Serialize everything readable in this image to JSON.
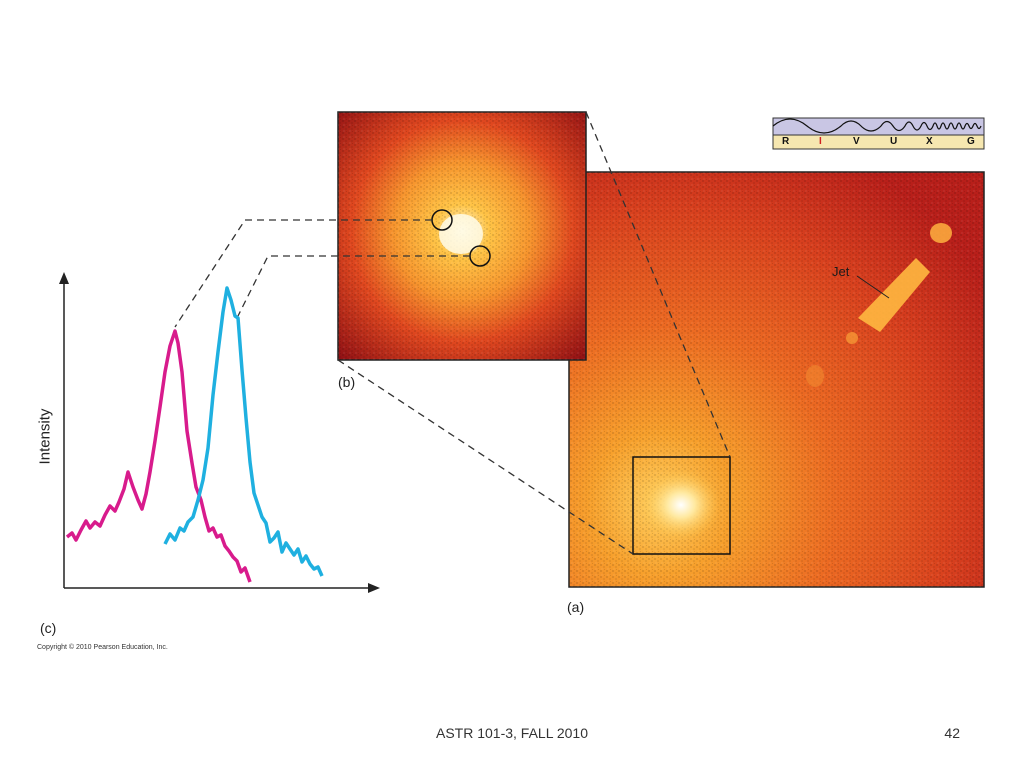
{
  "slide": {
    "footer_center": "ASTR 101-3, FALL 2010",
    "page_number": "42"
  },
  "figure": {
    "label_a": "(a)",
    "label_b": "(b)",
    "label_c": "(c)",
    "jet_label": "Jet",
    "copyright": "Copyright © 2010 Pearson Education, Inc.",
    "y_axis_label": "Intensity",
    "spectrum_bands": [
      "R",
      "I",
      "V",
      "U",
      "X",
      "G"
    ],
    "highlighted_band": "I",
    "colors": {
      "magenta_curve": "#d81b8c",
      "cyan_curve": "#1fb0e0",
      "image_dark": "#a8141a",
      "image_mid": "#e0481f",
      "image_bright": "#ffc040",
      "band_bar": "#c9c6e4",
      "band_label_bar": "#f6e7b0",
      "band_highlight": "#d02020"
    }
  }
}
